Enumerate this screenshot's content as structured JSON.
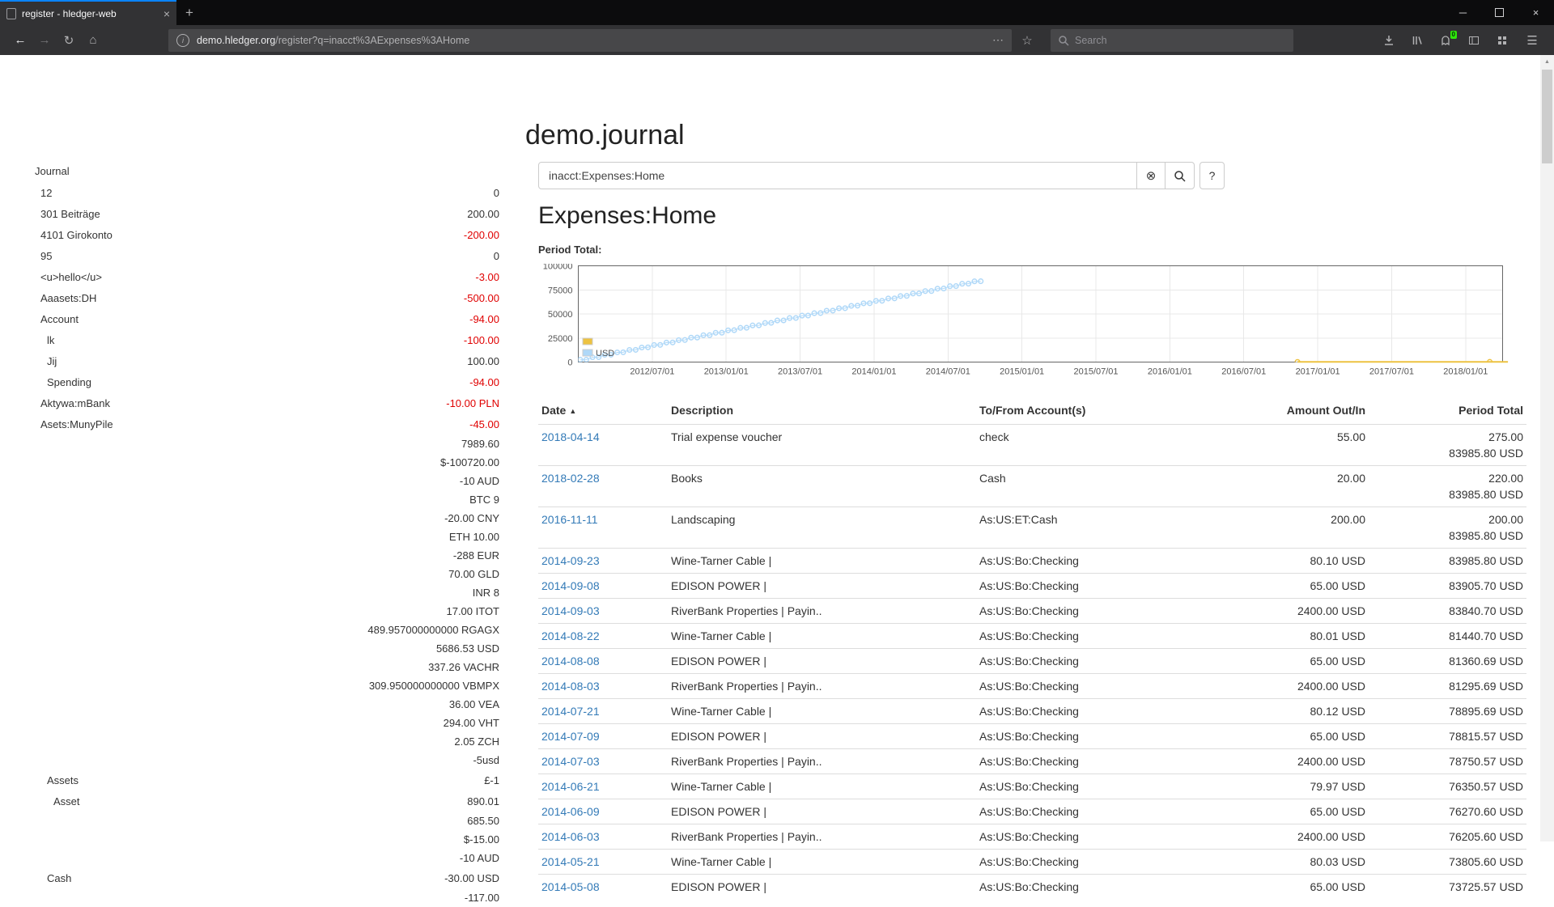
{
  "icons": {
    "plus": "+",
    "tab_close": "×",
    "minimize": "─",
    "close": "×",
    "back": "←",
    "forward": "→",
    "reload": "↻",
    "home": "⌂",
    "info": "i",
    "dots": "⋯",
    "star": "☆",
    "menu": "☰",
    "clear": "⊗",
    "help": "?",
    "caret_up": "▲",
    "scroll_up": "▲"
  },
  "browser": {
    "tab_title": "register - hledger-web",
    "url_domain": "demo.hledger.org",
    "url_path": "/register?q=inacct%3AExpenses%3AHome",
    "search_placeholder": "Search",
    "badge": "0"
  },
  "page": {
    "title": "demo.journal",
    "sidebar": {
      "heading": "Journal",
      "items": [
        {
          "name": "12",
          "indent": 0,
          "amount": "0",
          "neg": false
        },
        {
          "name": "301 Beiträge",
          "indent": 0,
          "amount": "200.00",
          "neg": false
        },
        {
          "name": "4101 Girokonto",
          "indent": 0,
          "amount": "-200.00",
          "neg": true
        },
        {
          "name": "95",
          "indent": 0,
          "amount": "0",
          "neg": false
        },
        {
          "name": "<u>hello</u>",
          "indent": 0,
          "amount": "-3.00",
          "neg": true
        },
        {
          "name": "Aaasets:DH",
          "indent": 0,
          "amount": "-500.00",
          "neg": true
        },
        {
          "name": "Account",
          "indent": 0,
          "amount": "-94.00",
          "neg": true
        },
        {
          "name": "lk",
          "indent": 1,
          "amount": "-100.00",
          "neg": true
        },
        {
          "name": "Jij",
          "indent": 1,
          "amount": "100.00",
          "neg": false
        },
        {
          "name": "Spending",
          "indent": 1,
          "amount": "-94.00",
          "neg": true
        },
        {
          "name": "Aktywa:mBank",
          "indent": 0,
          "amount": "-10.00 PLN",
          "neg": true
        },
        {
          "name": "Asets:MunyPile",
          "indent": 0,
          "amount": "-45.00",
          "neg": true
        },
        {
          "name": "",
          "amount": "7989.60",
          "neg": false
        },
        {
          "name": "",
          "amount": "$-100720.00",
          "neg": false
        },
        {
          "name": "",
          "amount": "-10 AUD",
          "neg": false
        },
        {
          "name": "",
          "amount": "BTC 9",
          "neg": false
        },
        {
          "name": "",
          "amount": "-20.00 CNY",
          "neg": false
        },
        {
          "name": "",
          "amount": "ETH 10.00",
          "neg": false
        },
        {
          "name": "",
          "amount": "-288 EUR",
          "neg": false
        },
        {
          "name": "",
          "amount": "70.00 GLD",
          "neg": false
        },
        {
          "name": "",
          "amount": "INR 8",
          "neg": false
        },
        {
          "name": "",
          "amount": "17.00 ITOT",
          "neg": false
        },
        {
          "name": "",
          "amount": "489.957000000000 RGAGX",
          "neg": false
        },
        {
          "name": "",
          "amount": "5686.53 USD",
          "neg": false
        },
        {
          "name": "",
          "amount": "337.26 VACHR",
          "neg": false
        },
        {
          "name": "",
          "amount": "309.950000000000 VBMPX",
          "neg": false
        },
        {
          "name": "",
          "amount": "36.00 VEA",
          "neg": false
        },
        {
          "name": "",
          "amount": "294.00 VHT",
          "neg": false
        },
        {
          "name": "",
          "amount": "2.05 ZCH",
          "neg": false
        },
        {
          "name": "",
          "amount": "-5usd",
          "neg": false
        },
        {
          "name": "Assets",
          "indent": 1,
          "amount": "£-1",
          "neg": false
        },
        {
          "name": "Asset",
          "indent": 2,
          "amount": "890.01",
          "neg": false
        },
        {
          "name": "",
          "amount": "685.50",
          "neg": false
        },
        {
          "name": "",
          "amount": "$-15.00",
          "neg": false
        },
        {
          "name": "",
          "amount": "-10 AUD",
          "neg": false
        },
        {
          "name": "Cash",
          "indent": 1,
          "amount": "-30.00 USD",
          "neg": false
        },
        {
          "name": "",
          "amount": "-117.00",
          "neg": false
        }
      ]
    },
    "search": {
      "value": "inacct:Expenses:Home"
    },
    "register": {
      "heading": "Expenses:Home",
      "chart_label": "Period Total:",
      "table": {
        "headers": [
          "Date",
          "Description",
          "To/From Account(s)",
          "Amount Out/In",
          "Period Total"
        ],
        "rows": [
          {
            "date": "2018-04-14",
            "desc": "Trial expense voucher",
            "acct": "check",
            "amount": "55.00",
            "total": [
              "275.00",
              "83985.80 USD"
            ]
          },
          {
            "date": "2018-02-28",
            "desc": "Books",
            "acct": "Cash",
            "amount": "20.00",
            "total": [
              "220.00",
              "83985.80 USD"
            ]
          },
          {
            "date": "2016-11-11",
            "desc": "Landscaping",
            "acct": "As:US:ET:Cash",
            "amount": "200.00",
            "total": [
              "200.00",
              "83985.80 USD"
            ]
          },
          {
            "date": "2014-09-23",
            "desc": "Wine-Tarner Cable |",
            "acct": "As:US:Bo:Checking",
            "amount": "80.10 USD",
            "total": [
              "83985.80 USD"
            ]
          },
          {
            "date": "2014-09-08",
            "desc": "EDISON POWER |",
            "acct": "As:US:Bo:Checking",
            "amount": "65.00 USD",
            "total": [
              "83905.70 USD"
            ]
          },
          {
            "date": "2014-09-03",
            "desc": "RiverBank Properties | Payin..",
            "acct": "As:US:Bo:Checking",
            "amount": "2400.00 USD",
            "total": [
              "83840.70 USD"
            ]
          },
          {
            "date": "2014-08-22",
            "desc": "Wine-Tarner Cable |",
            "acct": "As:US:Bo:Checking",
            "amount": "80.01 USD",
            "total": [
              "81440.70 USD"
            ]
          },
          {
            "date": "2014-08-08",
            "desc": "EDISON POWER |",
            "acct": "As:US:Bo:Checking",
            "amount": "65.00 USD",
            "total": [
              "81360.69 USD"
            ]
          },
          {
            "date": "2014-08-03",
            "desc": "RiverBank Properties | Payin..",
            "acct": "As:US:Bo:Checking",
            "amount": "2400.00 USD",
            "total": [
              "81295.69 USD"
            ]
          },
          {
            "date": "2014-07-21",
            "desc": "Wine-Tarner Cable |",
            "acct": "As:US:Bo:Checking",
            "amount": "80.12 USD",
            "total": [
              "78895.69 USD"
            ]
          },
          {
            "date": "2014-07-09",
            "desc": "EDISON POWER |",
            "acct": "As:US:Bo:Checking",
            "amount": "65.00 USD",
            "total": [
              "78815.57 USD"
            ]
          },
          {
            "date": "2014-07-03",
            "desc": "RiverBank Properties | Payin..",
            "acct": "As:US:Bo:Checking",
            "amount": "2400.00 USD",
            "total": [
              "78750.57 USD"
            ]
          },
          {
            "date": "2014-06-21",
            "desc": "Wine-Tarner Cable |",
            "acct": "As:US:Bo:Checking",
            "amount": "79.97 USD",
            "total": [
              "76350.57 USD"
            ]
          },
          {
            "date": "2014-06-09",
            "desc": "EDISON POWER |",
            "acct": "As:US:Bo:Checking",
            "amount": "65.00 USD",
            "total": [
              "76270.60 USD"
            ]
          },
          {
            "date": "2014-06-03",
            "desc": "RiverBank Properties | Payin..",
            "acct": "As:US:Bo:Checking",
            "amount": "2400.00 USD",
            "total": [
              "76205.60 USD"
            ]
          },
          {
            "date": "2014-05-21",
            "desc": "Wine-Tarner Cable |",
            "acct": "As:US:Bo:Checking",
            "amount": "80.03 USD",
            "total": [
              "73805.60 USD"
            ]
          },
          {
            "date": "2014-05-08",
            "desc": "EDISON POWER |",
            "acct": "As:US:Bo:Checking",
            "amount": "65.00 USD",
            "total": [
              "73725.57 USD"
            ]
          }
        ]
      }
    }
  },
  "chart_data": {
    "type": "line",
    "title": "Period Total:",
    "x_range": [
      2012.0,
      2018.25
    ],
    "y_range": [
      0,
      100000
    ],
    "y_ticks": [
      0,
      25000,
      50000,
      75000,
      100000
    ],
    "x_ticks": [
      {
        "t": 2012.5,
        "label": "2012/07/01"
      },
      {
        "t": 2013.0,
        "label": "2013/01/01"
      },
      {
        "t": 2013.5,
        "label": "2013/07/01"
      },
      {
        "t": 2014.0,
        "label": "2014/01/01"
      },
      {
        "t": 2014.5,
        "label": "2014/07/01"
      },
      {
        "t": 2015.0,
        "label": "2015/01/01"
      },
      {
        "t": 2015.5,
        "label": "2015/07/01"
      },
      {
        "t": 2016.0,
        "label": "2016/01/01"
      },
      {
        "t": 2016.5,
        "label": "2016/07/01"
      },
      {
        "t": 2017.0,
        "label": "2017/01/01"
      },
      {
        "t": 2017.5,
        "label": "2017/07/01"
      },
      {
        "t": 2018.0,
        "label": "2018/01/01"
      }
    ],
    "legend_position": "west",
    "grid": true,
    "series": [
      {
        "name": "",
        "color": "#edc240",
        "line_width": 2,
        "points": [
          [
            2016.863,
            200
          ],
          [
            2018.163,
            220
          ],
          [
            2018.286,
            275
          ]
        ]
      },
      {
        "name": "USD",
        "color": "#afd8f8",
        "line_width": 1,
        "points": [
          [
            2012.013,
            2440
          ],
          [
            2012.054,
            2545
          ],
          [
            2012.096,
            4985
          ],
          [
            2012.138,
            5090
          ],
          [
            2012.179,
            7530
          ],
          [
            2012.221,
            7635
          ],
          [
            2012.263,
            10075
          ],
          [
            2012.304,
            10180
          ],
          [
            2012.346,
            12620
          ],
          [
            2012.388,
            12725
          ],
          [
            2012.429,
            15165
          ],
          [
            2012.471,
            15270
          ],
          [
            2012.513,
            17710
          ],
          [
            2012.554,
            17815
          ],
          [
            2012.596,
            20255
          ],
          [
            2012.638,
            20360
          ],
          [
            2012.679,
            22800
          ],
          [
            2012.721,
            22905
          ],
          [
            2012.763,
            25345
          ],
          [
            2012.804,
            25450
          ],
          [
            2012.846,
            27890
          ],
          [
            2012.888,
            27995
          ],
          [
            2012.929,
            30435
          ],
          [
            2012.971,
            30540
          ],
          [
            2013.013,
            32980
          ],
          [
            2013.054,
            33085
          ],
          [
            2013.096,
            35525
          ],
          [
            2013.138,
            35630
          ],
          [
            2013.179,
            38070
          ],
          [
            2013.221,
            38175
          ],
          [
            2013.263,
            40615
          ],
          [
            2013.304,
            40720
          ],
          [
            2013.346,
            43160
          ],
          [
            2013.388,
            43265
          ],
          [
            2013.429,
            45705
          ],
          [
            2013.471,
            45810
          ],
          [
            2013.513,
            48250
          ],
          [
            2013.554,
            48355
          ],
          [
            2013.596,
            50795
          ],
          [
            2013.638,
            50900
          ],
          [
            2013.679,
            53340
          ],
          [
            2013.721,
            53445
          ],
          [
            2013.763,
            55885
          ],
          [
            2013.804,
            55990
          ],
          [
            2013.846,
            58430
          ],
          [
            2013.888,
            58535
          ],
          [
            2013.929,
            60975
          ],
          [
            2013.971,
            61080
          ],
          [
            2014.013,
            63520
          ],
          [
            2014.054,
            63625
          ],
          [
            2014.096,
            66065
          ],
          [
            2014.138,
            66170
          ],
          [
            2014.179,
            68610
          ],
          [
            2014.221,
            68715
          ],
          [
            2014.263,
            71155
          ],
          [
            2014.304,
            71260
          ],
          [
            2014.346,
            73700
          ],
          [
            2014.388,
            73805
          ],
          [
            2014.429,
            76245
          ],
          [
            2014.471,
            76350
          ],
          [
            2014.513,
            78790
          ],
          [
            2014.554,
            78895
          ],
          [
            2014.596,
            81335
          ],
          [
            2014.638,
            81440
          ],
          [
            2014.679,
            83880
          ],
          [
            2014.721,
            83985
          ]
        ]
      }
    ]
  }
}
